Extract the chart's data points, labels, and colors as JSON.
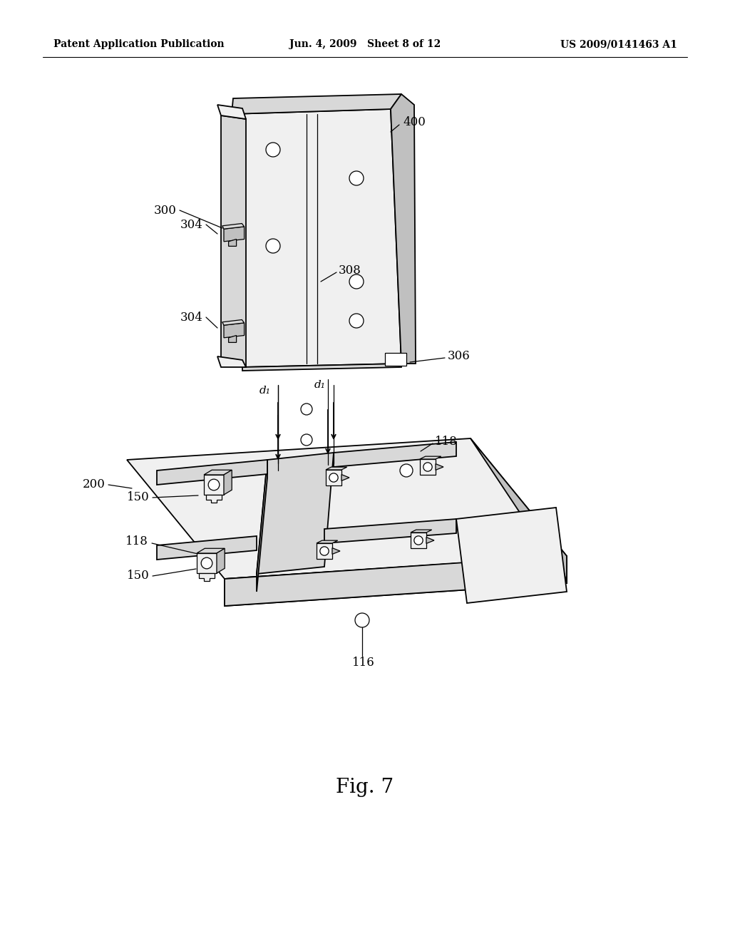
{
  "background_color": "#ffffff",
  "header_left": "Patent Application Publication",
  "header_center": "Jun. 4, 2009   Sheet 8 of 12",
  "header_right": "US 2009/0141463 A1",
  "figure_label": "Fig. 7"
}
